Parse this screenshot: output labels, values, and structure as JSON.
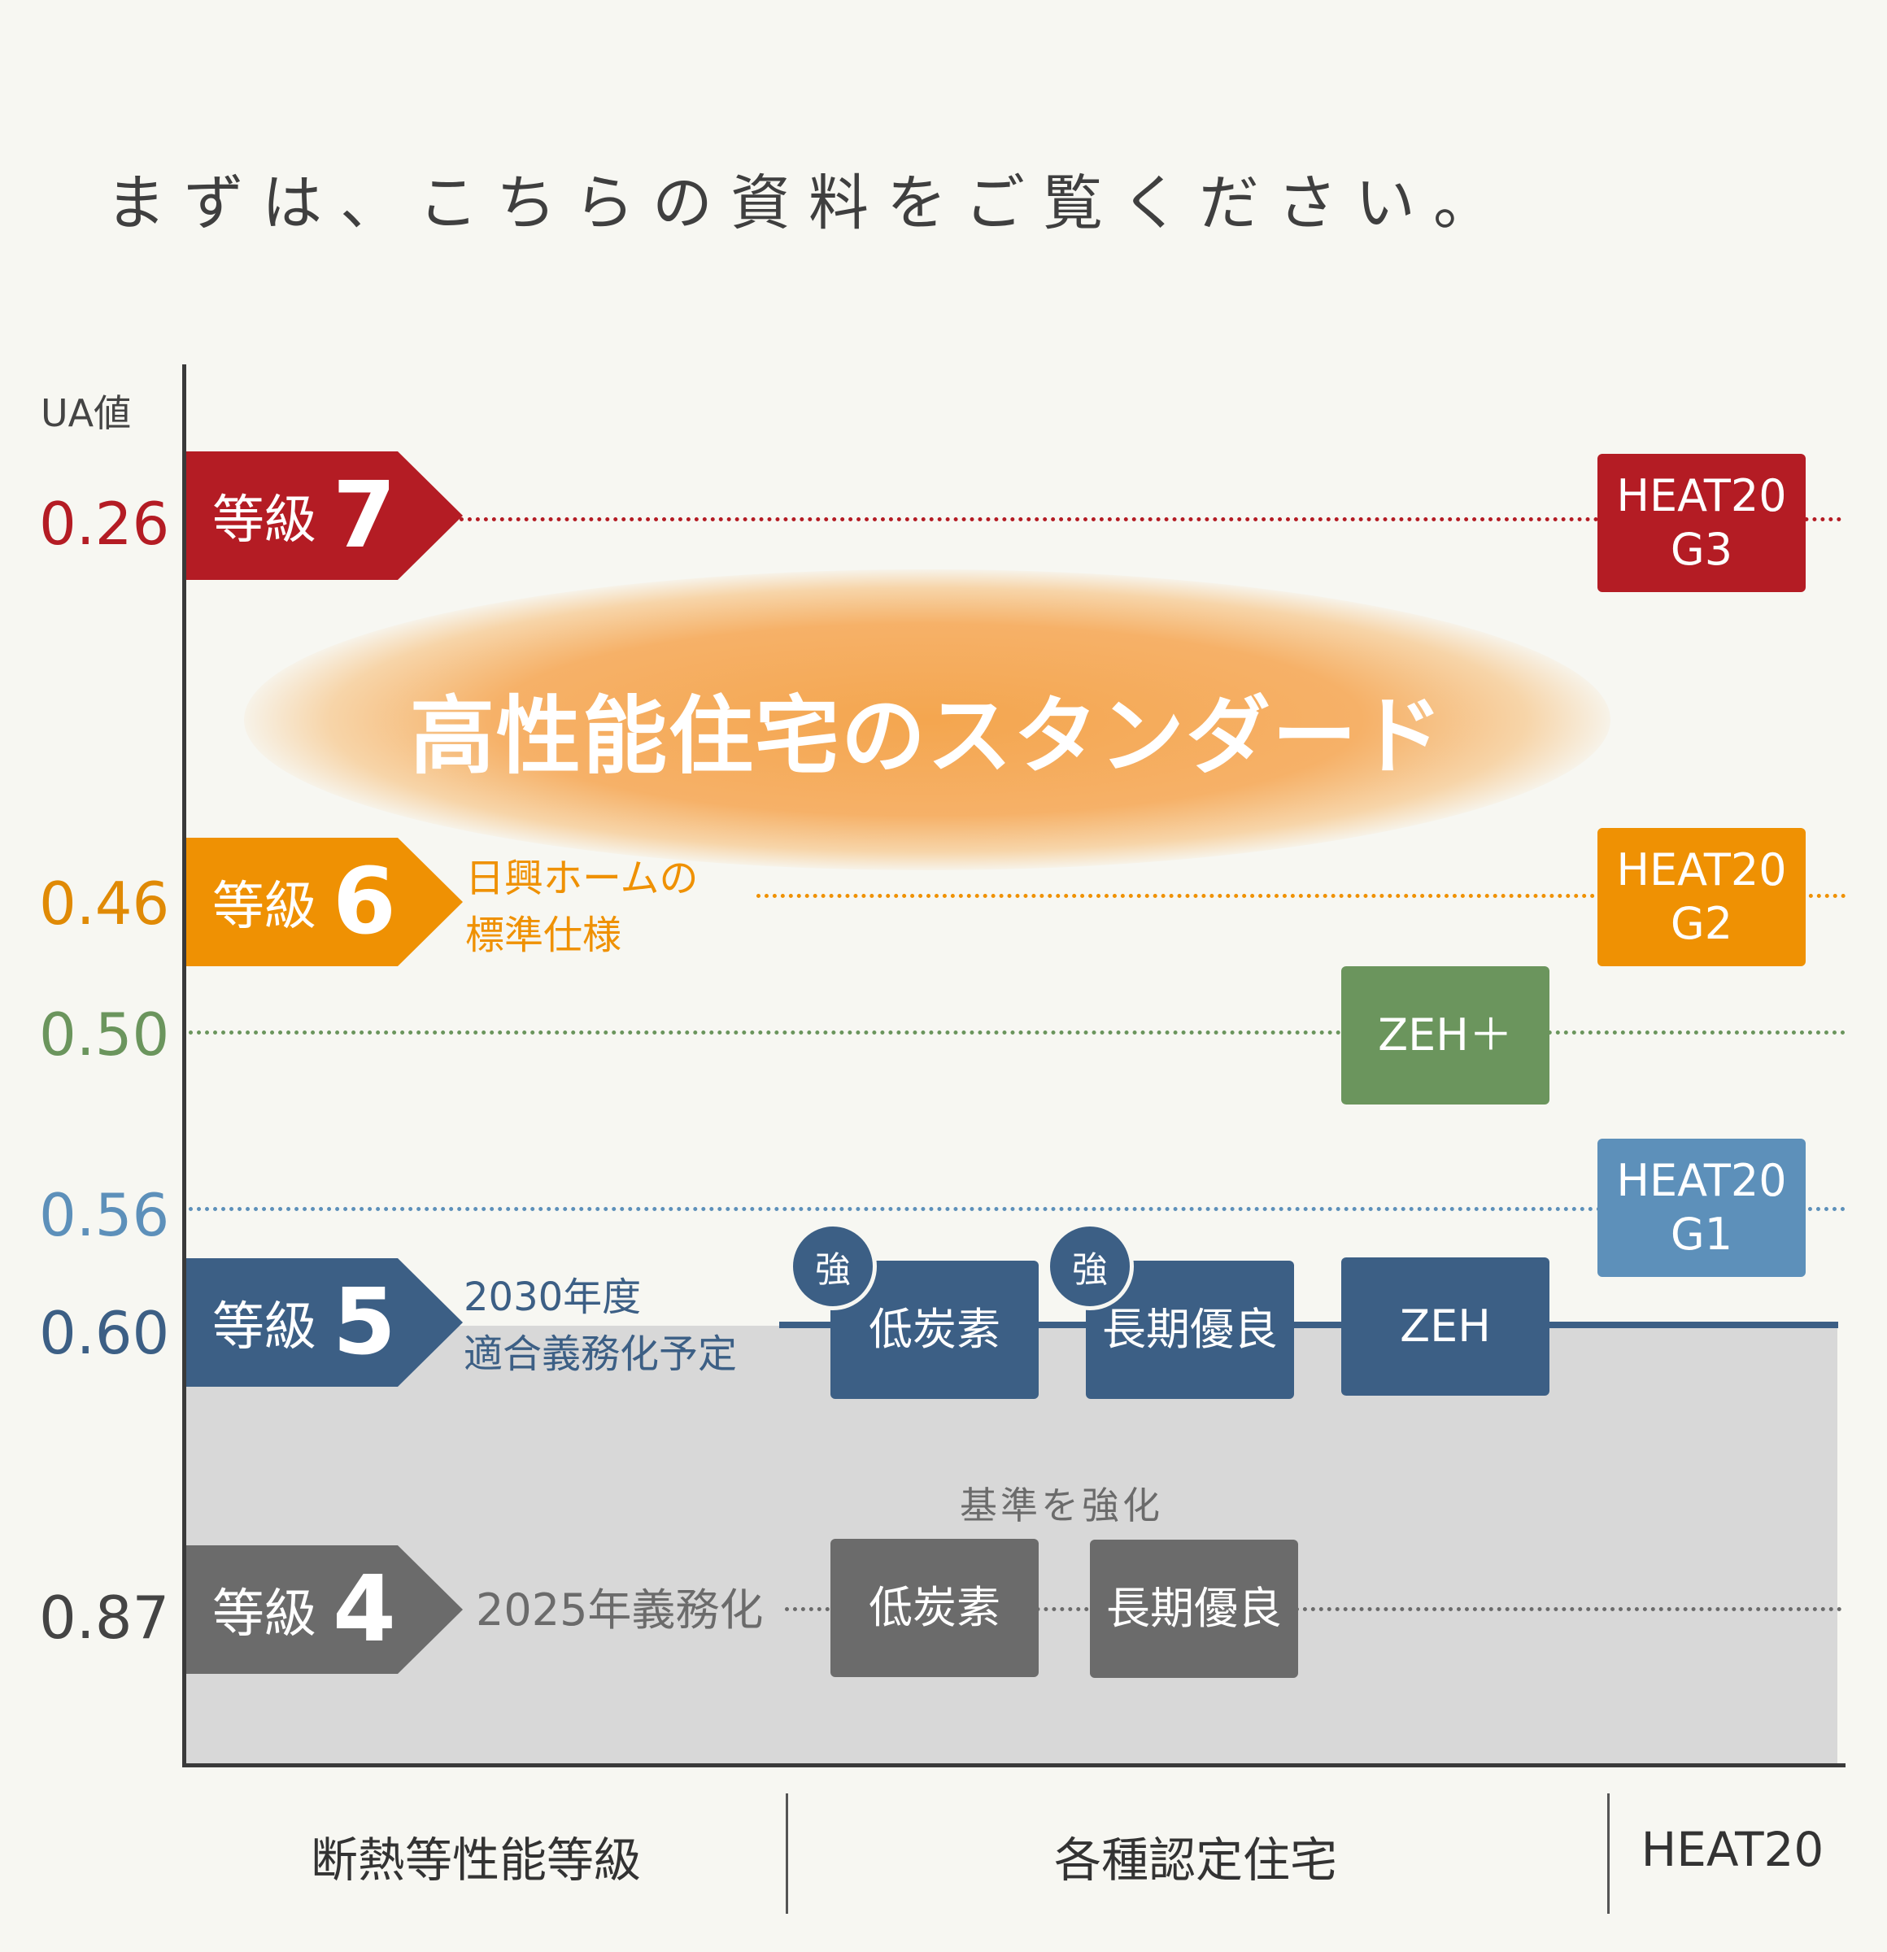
{
  "heading": "まずは、こちらの資料をご覧ください。",
  "y_axis_unit": "UA値",
  "ua_values": {
    "v026": "0.26",
    "v046": "0.46",
    "v050": "0.50",
    "v056": "0.56",
    "v060": "0.60",
    "v087": "0.87"
  },
  "colors": {
    "grade7": "#b41c24",
    "grade6": "#ef9103",
    "zeh_plus": "#6b955d",
    "heat_g1": "#5d90ba",
    "grade5": "#3c5f85",
    "grade4": "#6b6b6b",
    "glow": "#f4a64f"
  },
  "grades": {
    "g7": {
      "label": "等級",
      "number": "7"
    },
    "g6": {
      "label": "等級",
      "number": "6"
    },
    "g5": {
      "label": "等級",
      "number": "5"
    },
    "g4": {
      "label": "等級",
      "number": "4"
    }
  },
  "notes": {
    "g6_line1": "日興ホームの",
    "g6_line2": "標準仕様",
    "g5_line1": "2030年度",
    "g5_line2": "適合義務化予定",
    "g4": "2025年義務化"
  },
  "highlight": "高性能住宅のスタンダード",
  "boxes": {
    "heat_g3": {
      "line1": "HEAT20",
      "line2": "G3"
    },
    "heat_g2": {
      "line1": "HEAT20",
      "line2": "G2"
    },
    "heat_g1": {
      "line1": "HEAT20",
      "line2": "G1"
    },
    "zeh_plus": "ZEH＋",
    "zeh": "ZEH",
    "lowcarbon_5": "低炭素",
    "longterm_5": "長期優良",
    "lowcarbon_4": "低炭素",
    "longterm_4": "長期優良"
  },
  "badge": "強",
  "strengthen_label": "基準を強化",
  "categories": {
    "insulation": "断熱等性能等級",
    "certified": "各種認定住宅",
    "heat20": "HEAT20"
  }
}
